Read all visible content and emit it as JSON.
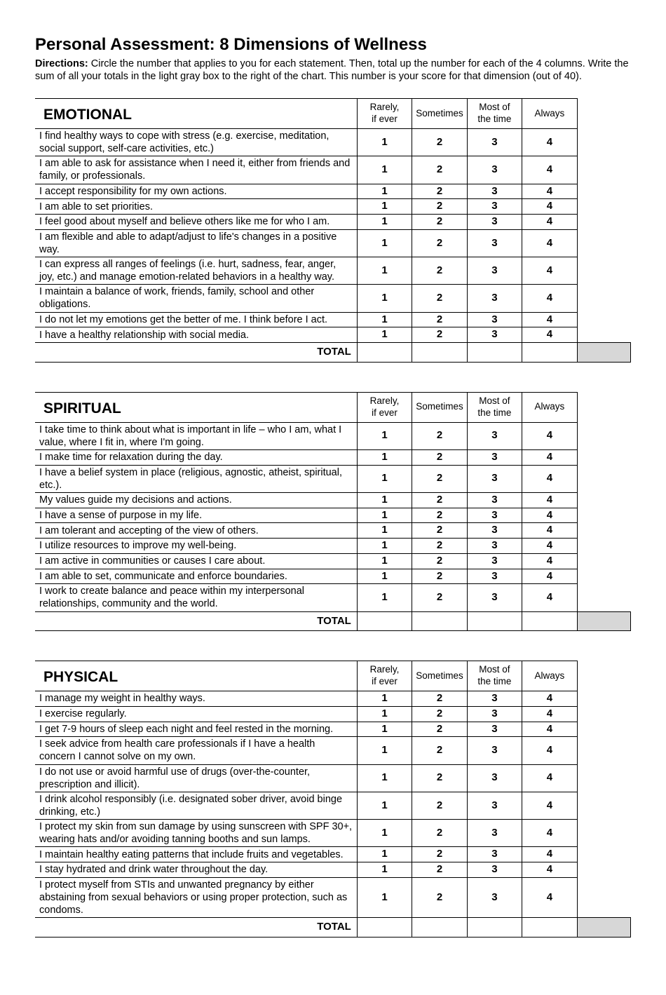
{
  "title": "Personal Assessment: 8 Dimensions of Wellness",
  "directions_label": "Directions:",
  "directions_text": " Circle the number that applies to you for each statement. Then, total up the number for each of the 4 columns. Write the sum of all your totals in the light gray box to the right of the chart. This number is your score for that dimension (out of 40).",
  "columns": [
    "Rarely,\nif ever",
    "Sometimes",
    "Most of\nthe time",
    "Always"
  ],
  "scale": [
    "1",
    "2",
    "3",
    "4"
  ],
  "total_label": "TOTAL",
  "colors": {
    "gray_box": "#d7d7d7",
    "border": "#000000",
    "background": "#ffffff"
  },
  "sections": [
    {
      "name": "EMOTIONAL",
      "statements": [
        "I find healthy ways to cope with stress (e.g. exercise, meditation, social support, self-care activities, etc.)",
        "I am able to ask for assistance when I need it, either from friends and family, or professionals.",
        "I accept responsibility for my own actions.",
        "I am able to set priorities.",
        "I feel good about myself and believe others like me for who I am.",
        "I am flexible and able to adapt/adjust to life's changes in a positive way.",
        "I can express all ranges of feelings (i.e. hurt, sadness, fear, anger, joy, etc.) and manage emotion-related behaviors in a healthy way.",
        "I maintain a balance of work, friends, family, school and other obligations.",
        "I do not let my emotions get the better of me. I think before I act.",
        "I have a healthy relationship with social media."
      ]
    },
    {
      "name": "SPIRITUAL",
      "statements": [
        "I take time to think about what is important in life – who I am, what I value, where I fit in, where I'm going.",
        "I make time for relaxation during the day.",
        "I have a belief system in place (religious, agnostic, atheist, spiritual, etc.).",
        "My values guide my decisions and actions.",
        "I have a sense of purpose in my life.",
        "I am tolerant and accepting of the view of others.",
        "I utilize resources to improve my well-being.",
        "I am active in communities or causes I care about.",
        "I am able to set, communicate and enforce boundaries.",
        "I work to create balance and peace within my interpersonal relationships, community and the world."
      ]
    },
    {
      "name": "PHYSICAL",
      "statements": [
        "I manage my weight in healthy ways.",
        "I exercise regularly.",
        "I get 7-9 hours of sleep each night and feel rested in the morning.",
        "I seek advice from health care professionals if I have a health concern I cannot solve on my own.",
        "I do not use or avoid harmful use of drugs (over-the-counter, prescription and illicit).",
        "I drink alcohol responsibly (i.e. designated sober driver, avoid binge drinking, etc.)",
        "I protect my skin from sun damage by using sunscreen with SPF 30+, wearing hats and/or avoiding tanning booths and sun lamps.",
        "I maintain healthy eating patterns that include fruits and vegetables.",
        "I stay hydrated and drink water throughout the day.",
        "I protect myself from STIs and unwanted pregnancy by either abstaining from sexual behaviors or using proper protection, such as condoms."
      ]
    }
  ]
}
